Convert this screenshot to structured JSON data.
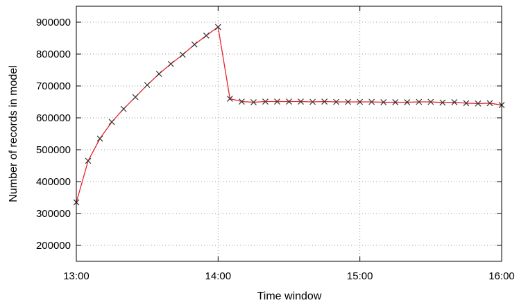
{
  "chart_data": {
    "type": "line",
    "title": "",
    "xlabel": "Time window",
    "ylabel": "Number of records in model",
    "xlim_minutes_from_start": [
      0,
      180
    ],
    "ylim": [
      150000,
      950000
    ],
    "x_ticks": [
      {
        "label": "13:00",
        "value": 0
      },
      {
        "label": "14:00",
        "value": 60
      },
      {
        "label": "15:00",
        "value": 120
      },
      {
        "label": "16:00",
        "value": 180
      }
    ],
    "y_ticks": [
      {
        "label": "200000",
        "value": 200000
      },
      {
        "label": "300000",
        "value": 300000
      },
      {
        "label": "400000",
        "value": 400000
      },
      {
        "label": "500000",
        "value": 500000
      },
      {
        "label": "600000",
        "value": 600000
      },
      {
        "label": "700000",
        "value": 700000
      },
      {
        "label": "800000",
        "value": 800000
      },
      {
        "label": "900000",
        "value": 900000
      }
    ],
    "grid": true,
    "legend": "none",
    "series": [
      {
        "color": "#e8202a",
        "marker": "x",
        "marker_color": "#333333",
        "x": [
          0,
          5,
          10,
          15,
          20,
          25,
          30,
          35,
          40,
          45,
          50,
          55,
          60,
          65,
          70,
          75,
          80,
          85,
          90,
          95,
          100,
          105,
          110,
          115,
          120,
          125,
          130,
          135,
          140,
          145,
          150,
          155,
          160,
          165,
          170,
          175,
          180
        ],
        "y": [
          335000,
          465000,
          535000,
          587000,
          628000,
          665000,
          703000,
          738000,
          769000,
          798000,
          830000,
          858000,
          885000,
          660000,
          651000,
          649000,
          651000,
          651000,
          651000,
          651000,
          650000,
          651000,
          650000,
          650000,
          650000,
          650000,
          649000,
          649000,
          649000,
          650000,
          650000,
          648000,
          649000,
          646000,
          645000,
          646000,
          640000
        ]
      }
    ]
  }
}
